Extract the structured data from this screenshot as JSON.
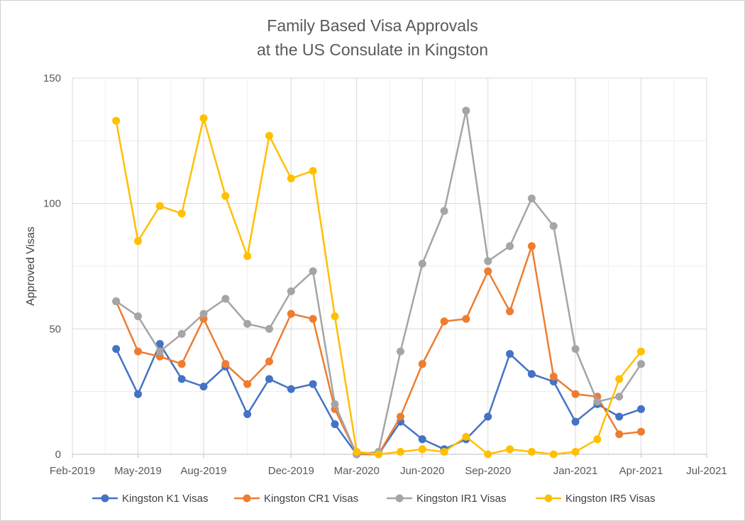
{
  "chart_data": {
    "type": "line",
    "title_line1": "Family Based Visa Approvals",
    "title_line2": "at the US Consulate in Kingston",
    "ylabel": "Approved Visas",
    "xlabel": "",
    "x_tick_labels": [
      "Feb-2019",
      "May-2019",
      "Aug-2019",
      "Dec-2019",
      "Mar-2020",
      "Jun-2020",
      "Sep-2020",
      "Jan-2021",
      "Apr-2021",
      "Jul-2021"
    ],
    "y_ticks": [
      "0",
      "50",
      "100",
      "150"
    ],
    "ylim": [
      0,
      150
    ],
    "grid": true,
    "legend_position": "bottom",
    "x": [
      "Apr-2019",
      "May-2019",
      "Jun-2019",
      "Jul-2019",
      "Aug-2019",
      "Sep-2019",
      "Oct-2019",
      "Nov-2019",
      "Dec-2019",
      "Jan-2020",
      "Feb-2020",
      "Mar-2020",
      "Apr-2020",
      "May-2020",
      "Jun-2020",
      "Jul-2020",
      "Aug-2020",
      "Sep-2020",
      "Oct-2020",
      "Nov-2020",
      "Dec-2020",
      "Jan-2021",
      "Feb-2021",
      "Mar-2021",
      "Apr-2021"
    ],
    "series": [
      {
        "name": "Kingston K1 Visas",
        "color": "#4472C4",
        "values": [
          42,
          24,
          44,
          30,
          27,
          35,
          16,
          30,
          26,
          28,
          12,
          0,
          0,
          13,
          6,
          2,
          6,
          15,
          40,
          32,
          29,
          13,
          20,
          15,
          18
        ]
      },
      {
        "name": "Kingston CR1 Visas",
        "color": "#ED7D31",
        "values": [
          61,
          41,
          39,
          36,
          54,
          36,
          28,
          37,
          56,
          54,
          18,
          0,
          0,
          15,
          36,
          53,
          54,
          73,
          57,
          83,
          31,
          24,
          23,
          8,
          9
        ]
      },
      {
        "name": "Kingston IR1 Visas",
        "color": "#A5A5A5",
        "values": [
          61,
          55,
          41,
          48,
          56,
          62,
          52,
          50,
          65,
          73,
          20,
          0,
          1,
          41,
          76,
          97,
          137,
          77,
          83,
          102,
          91,
          42,
          21,
          23,
          36
        ]
      },
      {
        "name": "Kingston IR5 Visas",
        "color": "#FFC000",
        "values": [
          133,
          85,
          99,
          96,
          134,
          103,
          79,
          127,
          110,
          113,
          55,
          1,
          0,
          1,
          2,
          1,
          7,
          0,
          2,
          1,
          0,
          1,
          6,
          30,
          41
        ]
      }
    ]
  }
}
